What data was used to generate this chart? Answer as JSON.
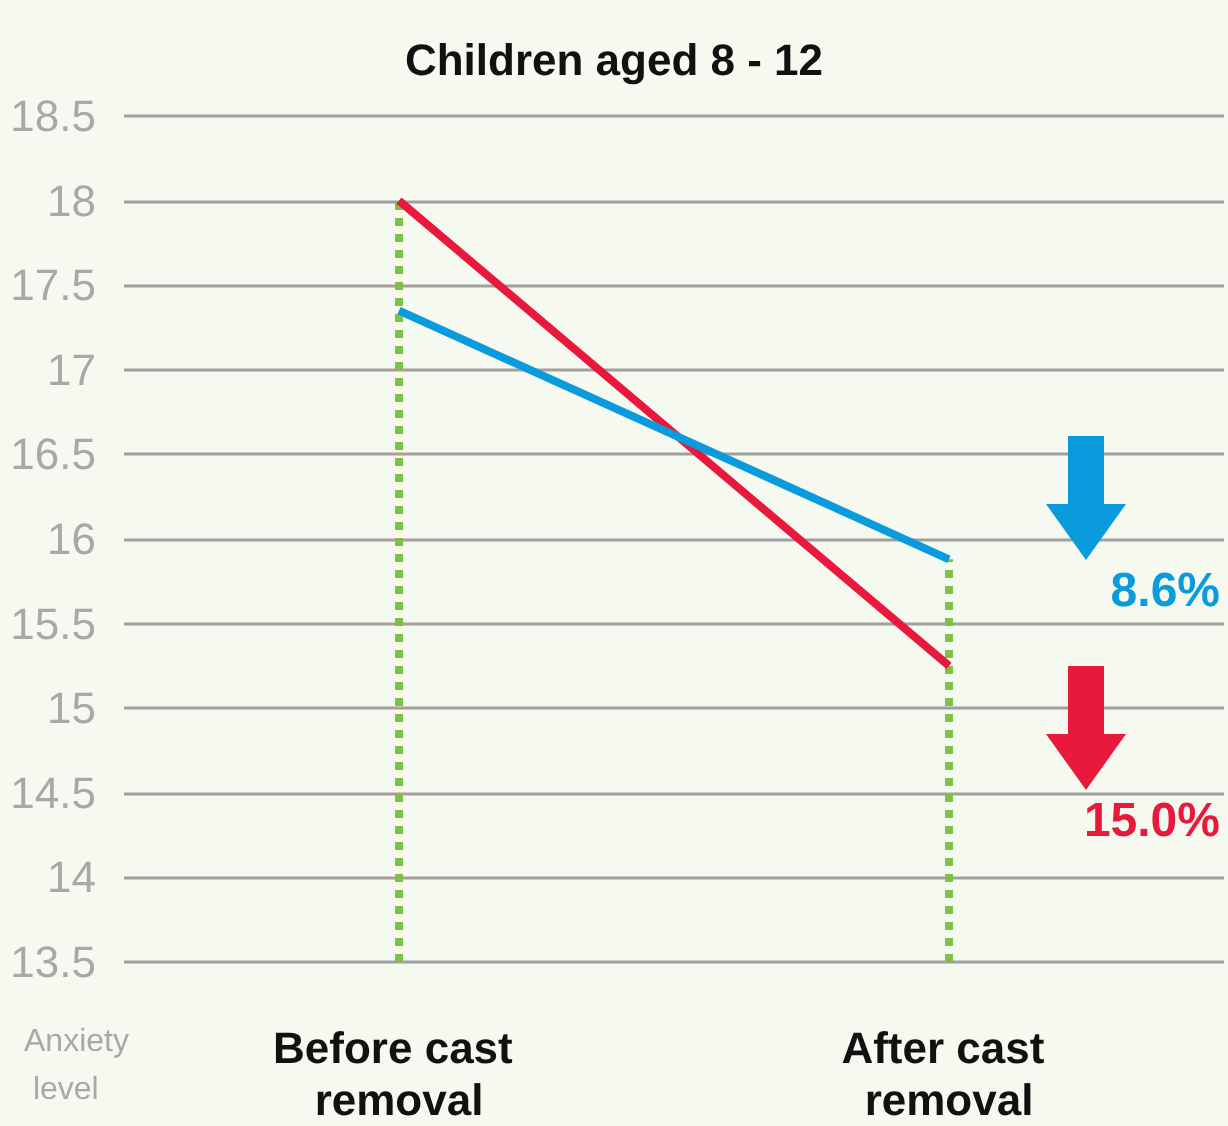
{
  "chart_data": {
    "type": "line",
    "title": "Children aged 8 - 12",
    "ylabel": "Anxiety level",
    "categories": [
      "Before cast removal",
      "After cast removal"
    ],
    "series": [
      {
        "color": "#e8193c",
        "values": [
          18.0,
          15.25
        ]
      },
      {
        "color": "#0a9bdc",
        "values": [
          17.35,
          15.88
        ]
      }
    ],
    "annotations": [
      "15.0%",
      "8.6%"
    ],
    "ref_lines": [
      {
        "axis": "x",
        "value": "Before cast removal",
        "color": "#7dc242",
        "line_style": "dotted"
      },
      {
        "axis": "x",
        "value": "After cast removal",
        "color": "#7dc242",
        "line_style": "dotted"
      }
    ],
    "ylim": [
      13.5,
      18.5
    ],
    "yticks": [
      13.5,
      14,
      14.5,
      15,
      15.5,
      16,
      16.5,
      17,
      17.5,
      18,
      18.5
    ],
    "grid": "y",
    "marker": "none",
    "line_style": "solid"
  }
}
